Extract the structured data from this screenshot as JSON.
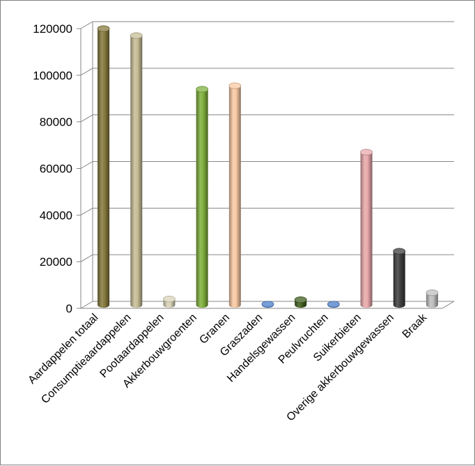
{
  "chart_data": {
    "type": "bar",
    "title": "",
    "xlabel": "",
    "ylabel": "",
    "ylim": [
      0,
      120000
    ],
    "yticks": [
      0,
      20000,
      40000,
      60000,
      80000,
      100000,
      120000
    ],
    "ytick_labels": [
      "0",
      "20000",
      "40000",
      "60000",
      "80000",
      "100000",
      "120000"
    ],
    "grid": true,
    "legend": "none",
    "style": "3d-cylinder",
    "categories": [
      "Aardappelen totaal",
      "Consumptieaardappelen",
      "Pootaardappelen",
      "Akkerbouwgroenten",
      "Granen",
      "Graszaden",
      "Handelsgewassen",
      "Peulvruchten",
      "Suikerbieten",
      "Overige akkerbouwgewassen",
      "Braak"
    ],
    "values": [
      118500,
      115500,
      2500,
      92500,
      94000,
      300,
      2200,
      300,
      65500,
      23000,
      5200
    ],
    "colors": [
      "#857A3E",
      "#C7BD96",
      "#D9D4B9",
      "#7FB03D",
      "#F8C9A3",
      "#4A7EC8",
      "#3F5E1E",
      "#4A7EC8",
      "#E9A9AC",
      "#3F3F3F",
      "#BFBFBF"
    ]
  }
}
